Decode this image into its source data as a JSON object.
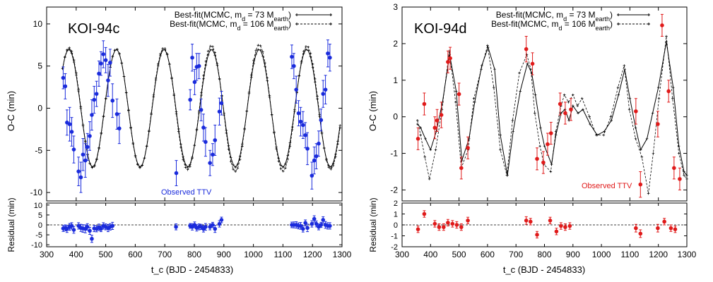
{
  "chart_data": [
    {
      "type": "scatter",
      "title": "KOI-94c",
      "xlabel": "t_c (BJD - 2454833)",
      "ylabel": "O-C (min)",
      "residual_ylabel": "Residual (min)",
      "xlim": [
        300,
        1300
      ],
      "ylim": [
        -11,
        12
      ],
      "residual_ylim": [
        -11,
        11
      ],
      "xticks": [
        300,
        400,
        500,
        600,
        700,
        800,
        900,
        1000,
        1100,
        1200,
        1300
      ],
      "yticks": [
        -10,
        -5,
        0,
        5,
        10
      ],
      "residual_yticks": [
        -10,
        -5,
        0,
        5,
        10
      ],
      "legend": [
        {
          "prefix": "Best-fit(MCMC, m",
          "sub": "d",
          "mid": " = 73 M",
          "sub2": "earth",
          "suffix": ")",
          "style": "solid"
        },
        {
          "prefix": "Best-fit(MCMC, m",
          "sub": "d",
          "mid": " = 106 M",
          "sub2": "earth",
          "suffix": ")",
          "style": "dashed"
        }
      ],
      "observed_label": "Observed TTV",
      "observed_color": "#1a2bdc",
      "model_period": 161,
      "model_amp": 7.0,
      "model_phase": 335,
      "observed": {
        "x": [
          356,
          363,
          369,
          378,
          385,
          392,
          408,
          416,
          423,
          431,
          438,
          446,
          453,
          461,
          469,
          477,
          484,
          492,
          500,
          508,
          515,
          523,
          538,
          546,
          739,
          786,
          793,
          801,
          808,
          816,
          823,
          831,
          838,
          853,
          862,
          870,
          885,
          892,
          1130,
          1137,
          1145,
          1153,
          1160,
          1168,
          1176,
          1183,
          1198,
          1206,
          1213,
          1221,
          1229,
          1236,
          1244,
          1252,
          1259
        ],
        "y": [
          3.6,
          2.6,
          -1.7,
          -1.9,
          -2.8,
          -4.9,
          -7.5,
          -8.2,
          -5.5,
          -6.2,
          -4.6,
          -3.3,
          -0.8,
          1.0,
          1.7,
          4.1,
          5.3,
          6.4,
          5.7,
          3.3,
          5.4,
          0.9,
          -0.7,
          -2.4,
          -7.7,
          1.0,
          6.0,
          3.1,
          4.9,
          5.0,
          -0.2,
          -2.3,
          -4.0,
          -6.5,
          -5.5,
          -3.8,
          -0.4,
          0.6,
          6.1,
          5.0,
          2.2,
          -0.6,
          -1.6,
          -2.0,
          -3.2,
          -4.8,
          -8.0,
          -6.2,
          -5.7,
          -4.2,
          -1.4,
          1.7,
          2.2,
          6.5,
          6.0
        ],
        "err": [
          1.3,
          1.5,
          1.5,
          2.0,
          1.7,
          1.6,
          1.7,
          1.8,
          1.9,
          2.0,
          1.6,
          1.7,
          1.8,
          1.6,
          1.5,
          1.5,
          1.4,
          1.6,
          1.5,
          1.9,
          1.6,
          2.0,
          1.8,
          1.8,
          1.5,
          1.2,
          1.6,
          1.5,
          1.6,
          1.5,
          1.3,
          1.6,
          1.7,
          1.5,
          1.3,
          1.8,
          1.6,
          1.4,
          1.4,
          1.5,
          1.6,
          1.5,
          1.7,
          1.6,
          1.5,
          1.9,
          1.6,
          1.6,
          1.5,
          1.5,
          1.3,
          1.6,
          1.7,
          1.6,
          1.6
        ]
      },
      "residual": {
        "x": [
          356,
          363,
          369,
          378,
          385,
          392,
          408,
          416,
          423,
          431,
          438,
          446,
          453,
          461,
          469,
          477,
          484,
          492,
          500,
          508,
          515,
          523,
          738,
          786,
          793,
          801,
          808,
          816,
          823,
          831,
          838,
          853,
          862,
          870,
          885,
          892,
          1130,
          1137,
          1145,
          1153,
          1160,
          1168,
          1176,
          1183,
          1198,
          1206,
          1213,
          1221,
          1229,
          1236,
          1244,
          1252,
          1259
        ],
        "y": [
          -1.8,
          -1.5,
          -2.0,
          -1.0,
          -0.5,
          -2.5,
          -0.5,
          -1.5,
          -1.8,
          -2.0,
          -1.0,
          -3.0,
          -7.0,
          -1.8,
          -2.0,
          -1.2,
          -2.0,
          -0.5,
          -1.0,
          -1.6,
          -1.0,
          -0.5,
          -1.0,
          -0.5,
          -1.0,
          0.0,
          -1.5,
          -1.0,
          -1.0,
          -2.0,
          -1.0,
          -1.0,
          0.0,
          -2.0,
          0.5,
          2.5,
          0.0,
          0.0,
          0.0,
          -0.5,
          -0.5,
          -2.0,
          1.0,
          -1.5,
          0.5,
          3.0,
          0.5,
          -1.0,
          0.0,
          2.5,
          0.0,
          -0.5,
          -0.5
        ],
        "err": [
          1.5,
          1.5,
          1.8,
          1.7,
          1.6,
          1.7,
          1.6,
          1.8,
          1.9,
          2.0,
          1.6,
          1.8,
          1.8,
          1.6,
          1.5,
          1.6,
          1.4,
          1.6,
          1.5,
          1.8,
          1.6,
          1.8,
          1.5,
          1.2,
          1.6,
          1.5,
          1.6,
          1.5,
          1.3,
          1.6,
          1.7,
          1.5,
          1.3,
          1.8,
          1.6,
          1.4,
          1.4,
          1.5,
          1.6,
          1.5,
          1.7,
          1.6,
          1.5,
          1.9,
          1.6,
          1.6,
          1.5,
          1.5,
          1.3,
          1.6,
          1.7,
          1.6,
          1.6
        ]
      }
    },
    {
      "type": "scatter",
      "title": "KOI-94d",
      "xlabel": "t_c (BJD - 2454833)",
      "ylabel": "O-C (min)",
      "residual_ylabel": "Residual (min)",
      "xlim": [
        300,
        1300
      ],
      "ylim": [
        -2.3,
        3.0
      ],
      "residual_ylim": [
        -2,
        2
      ],
      "xticks": [
        300,
        400,
        500,
        600,
        700,
        800,
        900,
        1000,
        1100,
        1200,
        1300
      ],
      "yticks": [
        -2,
        -1,
        0,
        1,
        2,
        3
      ],
      "residual_yticks": [
        -2,
        -1,
        0,
        1,
        2
      ],
      "legend": [
        {
          "prefix": "Best-fit(MCMC, m",
          "sub": "d",
          "mid": " = 73 M",
          "sub2": "earth",
          "suffix": ")",
          "style": "solid"
        },
        {
          "prefix": "Best-fit(MCMC, m",
          "sub": "d",
          "mid": " = 106 M",
          "sub2": "earth",
          "suffix": ")",
          "style": "dashed"
        }
      ],
      "observed_label": "Observed TTV",
      "observed_color": "#e01a1a",
      "model_solid": {
        "x": [
          354,
          365,
          382,
          400,
          420,
          442,
          467,
          490,
          510,
          535,
          555,
          580,
          602,
          625,
          645,
          670,
          690,
          715,
          740,
          755,
          768,
          786,
          800,
          825,
          840,
          858,
          872,
          886,
          900,
          918,
          935,
          960,
          985,
          1010,
          1035,
          1060,
          1082,
          1100,
          1120,
          1138,
          1160,
          1180,
          1200,
          1228,
          1252,
          1272,
          1290,
          1300
        ],
        "y": [
          -0.2,
          -0.3,
          -0.6,
          -0.9,
          -0.4,
          0.4,
          1.7,
          0.7,
          -1.2,
          -0.6,
          0.4,
          1.4,
          1.9,
          1.3,
          -0.5,
          -1.6,
          -0.4,
          0.7,
          1.45,
          1.2,
          0.6,
          -0.3,
          -0.8,
          -1.3,
          -0.5,
          0.1,
          0.2,
          -0.1,
          0.3,
          0.1,
          0.2,
          -0.2,
          -0.5,
          -0.4,
          -0.1,
          0.6,
          1.3,
          0.5,
          -0.3,
          -0.9,
          -0.6,
          0.1,
          0.8,
          2.05,
          0.8,
          -0.8,
          -1.5,
          -1.6
        ]
      },
      "model_dashed": {
        "x": [
          354,
          365,
          380,
          396,
          418,
          440,
          466,
          488,
          508,
          532,
          552,
          578,
          600,
          622,
          645,
          668,
          688,
          712,
          738,
          752,
          766,
          784,
          798,
          822,
          840,
          858,
          870,
          884,
          900,
          916,
          932,
          958,
          982,
          1008,
          1033,
          1058,
          1080,
          1098,
          1120,
          1142,
          1165,
          1182,
          1202,
          1228,
          1250,
          1272,
          1290,
          1300
        ],
        "y": [
          -0.1,
          -0.5,
          -1.1,
          -1.7,
          -0.9,
          0.2,
          1.8,
          0.4,
          -1.4,
          -0.9,
          0.5,
          1.3,
          1.95,
          0.8,
          -0.9,
          -1.6,
          -0.1,
          1.2,
          1.7,
          1.3,
          0.1,
          -0.8,
          -1.3,
          -1.5,
          -0.4,
          0.3,
          0.6,
          0.4,
          0.6,
          0.3,
          0.5,
          0.0,
          -0.5,
          -0.5,
          0.0,
          0.8,
          1.4,
          0.2,
          -0.6,
          -1.1,
          -2.1,
          -1.0,
          0.5,
          2.2,
          0.5,
          -1.0,
          -1.6,
          -1.7
        ]
      },
      "observed": {
        "x": [
          356,
          378,
          415,
          423,
          438,
          461,
          469,
          500,
          508,
          531,
          736,
          758,
          774,
          796,
          811,
          823,
          855,
          873,
          893,
          1121,
          1137,
          1198,
          1213,
          1236,
          1255,
          1275
        ],
        "y": [
          -0.6,
          0.35,
          -0.3,
          -0.1,
          0.05,
          1.5,
          1.6,
          0.62,
          -1.4,
          -0.85,
          1.85,
          1.45,
          -1.15,
          -1.25,
          -0.75,
          -0.45,
          0.35,
          0.1,
          0.2,
          0.15,
          -1.85,
          -0.2,
          2.5,
          0.7,
          -1.4,
          -1.7
        ],
        "err": [
          0.3,
          0.3,
          0.3,
          0.3,
          0.35,
          0.3,
          0.3,
          0.3,
          0.3,
          0.3,
          0.35,
          0.3,
          0.3,
          0.3,
          0.3,
          0.3,
          0.3,
          0.3,
          0.3,
          0.35,
          0.35,
          0.35,
          0.3,
          0.3,
          0.3,
          0.3
        ]
      },
      "residual": {
        "x": [
          356,
          378,
          415,
          430,
          446,
          461,
          477,
          492,
          508,
          531,
          736,
          751,
          774,
          820,
          842,
          858,
          873,
          889,
          1121,
          1137,
          1198,
          1221,
          1244,
          1259
        ],
        "y": [
          -0.4,
          1.0,
          0.1,
          -0.2,
          -0.2,
          0.2,
          0.1,
          0.0,
          -0.2,
          0.4,
          0.4,
          0.3,
          -0.9,
          0.4,
          -0.6,
          -0.1,
          -0.2,
          -0.1,
          -0.3,
          -0.8,
          -0.3,
          0.3,
          -0.3,
          -0.4
        ],
        "err": [
          0.3,
          0.3,
          0.3,
          0.3,
          0.3,
          0.3,
          0.3,
          0.3,
          0.3,
          0.3,
          0.35,
          0.3,
          0.3,
          0.3,
          0.3,
          0.3,
          0.3,
          0.3,
          0.35,
          0.35,
          0.35,
          0.3,
          0.3,
          0.3
        ]
      }
    }
  ]
}
